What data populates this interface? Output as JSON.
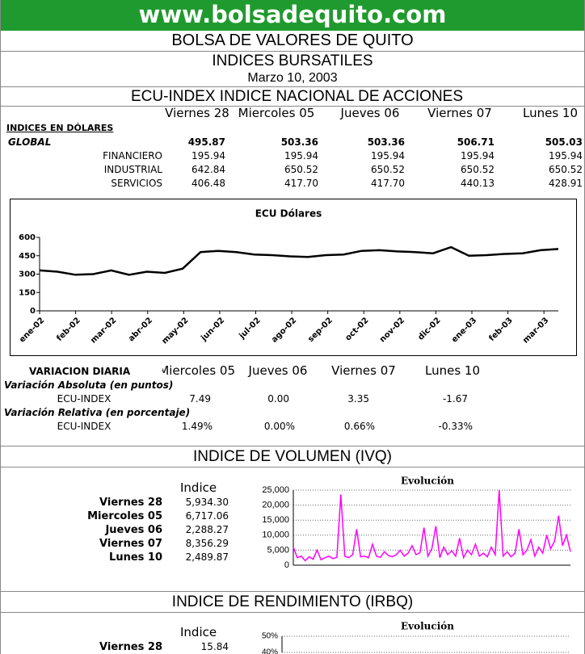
{
  "header": {
    "site": "www.bolsadequito.com",
    "org": "BOLSA DE VALORES DE QUITO",
    "title": "INDICES BURSATILES",
    "date": "Marzo 10, 2003"
  },
  "ecu": {
    "title": "ECU-INDEX  INDICE NACIONAL DE ACCIONES",
    "columns": [
      "Viernes 28",
      "Miercoles 05",
      "Jueves 06",
      "Viernes 07",
      "Lunes 10"
    ],
    "section": "INDICES EN DÓLARES",
    "rows": [
      {
        "label": "GLOBAL",
        "values": [
          "495.87",
          "503.36",
          "503.36",
          "506.71",
          "505.03"
        ]
      },
      {
        "label": "FINANCIERO",
        "values": [
          "195.94",
          "195.94",
          "195.94",
          "195.94",
          "195.94"
        ]
      },
      {
        "label": "INDUSTRIAL",
        "values": [
          "642.84",
          "650.52",
          "650.52",
          "650.52",
          "650.52"
        ]
      },
      {
        "label": "SERVICIOS",
        "values": [
          "406.48",
          "417.70",
          "417.70",
          "440.13",
          "428.91"
        ]
      }
    ]
  },
  "ecu_chart": {
    "type": "line",
    "title": "ECU Dólares",
    "color": "#000000",
    "categories": [
      "ene-02",
      "feb-02",
      "mar-02",
      "abr-02",
      "may-02",
      "jun-02",
      "jul-02",
      "ago-02",
      "sep-02",
      "oct-02",
      "nov-02",
      "dic-02",
      "ene-03",
      "feb-03",
      "mar-03"
    ],
    "values": [
      330,
      320,
      295,
      300,
      330,
      295,
      320,
      310,
      345,
      480,
      490,
      480,
      460,
      455,
      445,
      440,
      455,
      460,
      490,
      495,
      485,
      480,
      470,
      520,
      450,
      455,
      465,
      470,
      495,
      505
    ],
    "ylim": [
      0,
      600
    ],
    "yticks": [
      0,
      150,
      300,
      450,
      600
    ]
  },
  "variacion": {
    "title": "VARIACION DIARIA",
    "columns": [
      "Miercoles 05",
      "Jueves 06",
      "Viernes 07",
      "Lunes 10"
    ],
    "abs_label": "Variación Absoluta (en puntos)",
    "abs_row": {
      "label": "ECU-INDEX",
      "values": [
        "7.49",
        "0.00",
        "3.35",
        "-1.67"
      ]
    },
    "rel_label": "Variación Relativa (en porcentaje)",
    "rel_row": {
      "label": "ECU-INDEX",
      "values": [
        "1.49%",
        "0.00%",
        "0.66%",
        "-0.33%"
      ]
    }
  },
  "ivq": {
    "title": "INDICE DE VOLUMEN (IVQ)",
    "header": "Indice",
    "rows": [
      [
        "Viernes 28",
        "5,934.30"
      ],
      [
        "Miercoles 05",
        "6,717.06"
      ],
      [
        "Jueves 06",
        "2,288.27"
      ],
      [
        "Viernes 07",
        "8,356.29"
      ],
      [
        "Lunes 10",
        "2,489.87"
      ]
    ]
  },
  "ivq_chart": {
    "type": "line",
    "title": "Evolución",
    "color": "#ff00ff",
    "values": [
      6000,
      2500,
      3000,
      1500,
      2800,
      2000,
      5000,
      1800,
      2500,
      3000,
      2200,
      2600,
      23500,
      3000,
      2500,
      3500,
      12000,
      2800,
      3000,
      2500,
      7000,
      3000,
      2600,
      4500,
      3200,
      2800,
      3500,
      5000,
      3000,
      4000,
      6500,
      3500,
      4200,
      12500,
      3000,
      5500,
      13000,
      2500,
      6000,
      3500,
      4800,
      3000,
      9000,
      2500,
      5000,
      3500,
      7000,
      3000,
      4000,
      2800,
      6000,
      3500,
      25000,
      3000,
      4500,
      2800,
      4000,
      12000,
      3500,
      5000,
      8500,
      3000,
      6000,
      4000,
      10000,
      5500,
      8000,
      16500,
      6500,
      10000,
      4500
    ],
    "ylim": [
      0,
      25000
    ],
    "yticks": [
      0,
      {
        "value": 5000,
        "label": "5,000"
      },
      {
        "value": 10000,
        "label": "10,000"
      },
      {
        "value": 15000,
        "label": "15,000"
      },
      {
        "value": 20000,
        "label": "20,000"
      },
      {
        "value": 25000,
        "label": "25,000"
      }
    ]
  },
  "irbq": {
    "title": "INDICE DE RENDIMIENTO (IRBQ)",
    "header": "Indice",
    "rows": [
      [
        "Viernes 28",
        "15.84"
      ]
    ]
  },
  "irbq_chart": {
    "type": "line",
    "title": "Evolución",
    "ylim": [
      40,
      50
    ],
    "yticks": [
      {
        "value": 40,
        "label": "40%"
      },
      {
        "value": 50,
        "label": "50%"
      }
    ]
  }
}
